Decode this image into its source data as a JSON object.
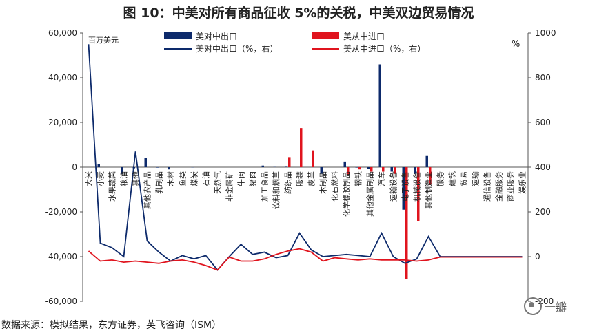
{
  "title": "图 10：中美对所有商品征收 5%的关税，中美双边贸易情况",
  "source": "数据来源：模拟结果，东方证券，英飞咨询（ISM）",
  "watermark": "一瓣",
  "chart_data": {
    "type": "bar+line",
    "left_unit": "百万美元",
    "right_unit": "%",
    "ylim_left": [
      -60000,
      60000
    ],
    "yticks_left": [
      "60,000",
      "40,000",
      "20,000",
      "0",
      "-20,000",
      "-40,000",
      "-60,000"
    ],
    "ylim_right": [
      -200,
      1000
    ],
    "yticks_right": [
      "1000",
      "800",
      "600",
      "400",
      "200",
      "0",
      "-200"
    ],
    "legend": {
      "export_bar": "美对中出口",
      "import_bar": "美从中进口",
      "export_line": "美对中出口（%，右）",
      "import_line": "美从中进口（%，右）"
    },
    "colors": {
      "export": "#0d2a6b",
      "import": "#e0141e"
    },
    "categories": [
      "大米",
      "小麦",
      "水果蔬菜",
      "粮油",
      "其他",
      "其他农产品",
      "乳制品",
      "木材",
      "鱼类",
      "煤炭",
      "石油",
      "天然气",
      "非金属矿",
      "牛肉",
      "猪肉",
      "加工食品",
      "饮料和烟草",
      "纺织品",
      "服装",
      "皮革",
      "木制品",
      "化石燃料",
      "化学橡胶制品",
      "钢铁",
      "其他金属制品",
      "汽车",
      "运输设备",
      "电子设备",
      "机械设备",
      "其他制造业",
      "服务",
      "建筑",
      "贸易",
      "运输",
      "通信设备",
      "金融服务",
      "商业服务",
      "娱乐业"
    ],
    "series": [
      {
        "name": "美对中出口",
        "type": "bar",
        "axis": "left",
        "values": [
          0,
          1500,
          0,
          -3000,
          -500,
          4000,
          -200,
          -1000,
          0,
          -100,
          0,
          0,
          0,
          0,
          0,
          700,
          100,
          200,
          0,
          0,
          -3000,
          0,
          2500,
          -200,
          -800,
          46000,
          -2000,
          -19000,
          -3000,
          5000,
          0,
          0,
          0,
          0,
          0,
          0,
          0,
          0
        ]
      },
      {
        "name": "美从中进口",
        "type": "bar",
        "axis": "left",
        "values": [
          0,
          0,
          0,
          0,
          0,
          0,
          0,
          0,
          0,
          0,
          0,
          0,
          0,
          0,
          0,
          0,
          0,
          4500,
          17500,
          7500,
          0,
          0,
          -3500,
          -1000,
          -2000,
          -2000,
          -3000,
          -50000,
          -24000,
          -8000,
          0,
          0,
          0,
          0,
          0,
          0,
          0,
          0
        ]
      },
      {
        "name": "美对中出口（%，右）",
        "type": "line",
        "axis": "right",
        "values": [
          950,
          60,
          40,
          0,
          470,
          70,
          20,
          -20,
          5,
          -10,
          5,
          -60,
          0,
          55,
          10,
          20,
          -5,
          5,
          105,
          30,
          0,
          5,
          10,
          5,
          0,
          105,
          0,
          -30,
          -10,
          90,
          0,
          0,
          0,
          0,
          0,
          0,
          0,
          0
        ]
      },
      {
        "name": "美从中进口（%，右）",
        "type": "line",
        "axis": "right",
        "values": [
          25,
          -20,
          -15,
          -25,
          -20,
          -25,
          -30,
          -20,
          -15,
          -25,
          -40,
          -60,
          -2,
          -20,
          -20,
          -10,
          10,
          25,
          35,
          20,
          -20,
          -5,
          -10,
          -15,
          -10,
          -15,
          -15,
          -15,
          -20,
          -15,
          -2,
          -2,
          -2,
          -2,
          -2,
          -2,
          -2,
          -2
        ]
      }
    ]
  }
}
